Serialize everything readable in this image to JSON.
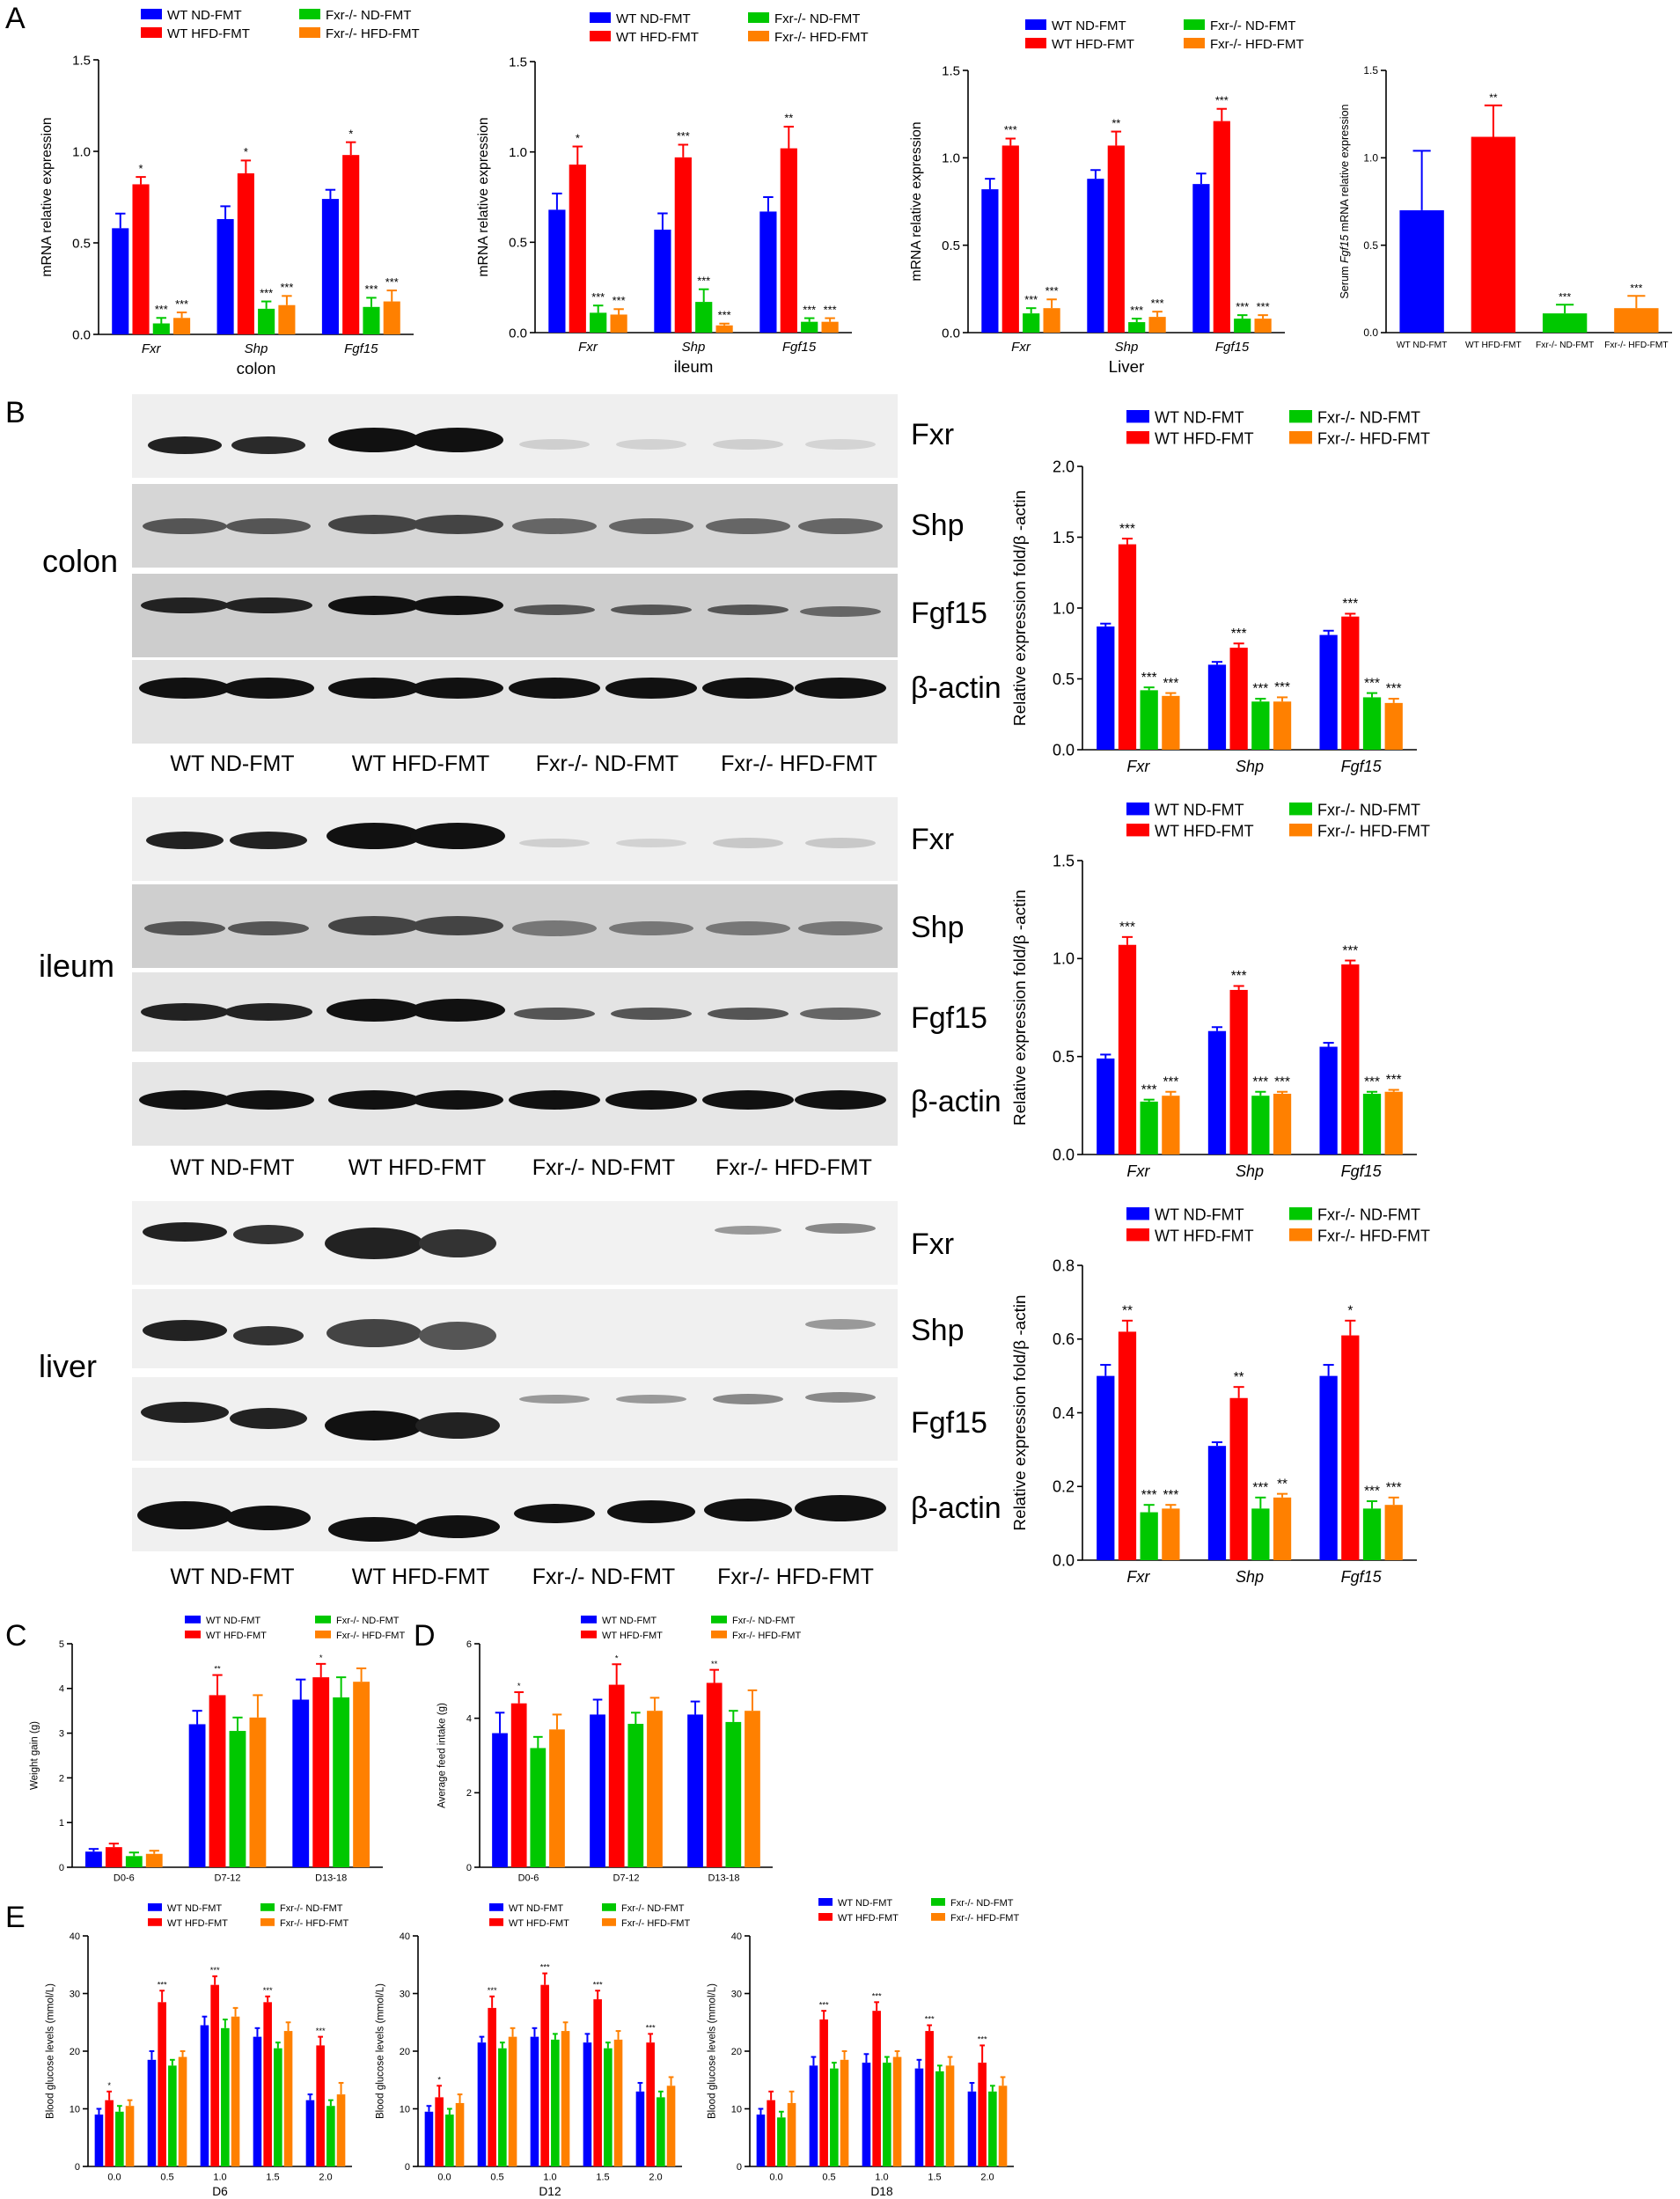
{
  "colors": {
    "WT ND-FMT": "#0000ff",
    "WT HFD-FMT": "#ff0000",
    "Fxr-/- ND-FMT": "#00c800",
    "Fxr-/- HFD-FMT": "#ff8000"
  },
  "legend_labels": [
    "WT ND-FMT",
    "WT HFD-FMT",
    "Fxr-/- ND-FMT",
    "Fxr-/- HFD-FMT"
  ],
  "panel_labels": {
    "A": "A",
    "B": "B",
    "C": "C",
    "D": "D",
    "E": "E"
  },
  "blots": {
    "tissues": [
      "colon",
      "ileum",
      "liver"
    ],
    "bands": [
      "Fxr",
      "Shp",
      "Fgf15",
      "β-actin"
    ],
    "lanes": [
      "WT ND-FMT",
      "WT HFD-FMT",
      "Fxr-/- ND-FMT",
      "Fxr-/- HFD-FMT"
    ]
  },
  "chart_data": [
    {
      "id": "A1",
      "type": "bar",
      "categories": [
        "Fxr",
        "Shp",
        "Fgf15"
      ],
      "xlabel": "colon",
      "ylabel": "mRNA relative expression",
      "ylim": [
        0,
        1.5
      ],
      "yticks": [
        "0.0",
        "0.5",
        "1.0",
        "1.5"
      ],
      "series": [
        {
          "name": "WT ND-FMT",
          "values": [
            0.58,
            0.63,
            0.74
          ],
          "err": [
            0.08,
            0.07,
            0.05
          ],
          "sig": [
            "",
            "",
            ""
          ]
        },
        {
          "name": "WT HFD-FMT",
          "values": [
            0.82,
            0.88,
            0.98
          ],
          "err": [
            0.04,
            0.07,
            0.07
          ],
          "sig": [
            "*",
            "*",
            "*"
          ]
        },
        {
          "name": "Fxr-/- ND-FMT",
          "values": [
            0.06,
            0.14,
            0.15
          ],
          "err": [
            0.03,
            0.04,
            0.05
          ],
          "sig": [
            "***",
            "***",
            "***"
          ]
        },
        {
          "name": "Fxr-/- HFD-FMT",
          "values": [
            0.09,
            0.16,
            0.18
          ],
          "err": [
            0.03,
            0.05,
            0.06
          ],
          "sig": [
            "***",
            "***",
            "***"
          ]
        }
      ]
    },
    {
      "id": "A2",
      "type": "bar",
      "categories": [
        "Fxr",
        "Shp",
        "Fgf15"
      ],
      "xlabel": "ileum",
      "ylabel": "mRNA relative expression",
      "ylim": [
        0,
        1.5
      ],
      "yticks": [
        "0.0",
        "0.5",
        "1.0",
        "1.5"
      ],
      "series": [
        {
          "name": "WT ND-FMT",
          "values": [
            0.68,
            0.57,
            0.67
          ],
          "err": [
            0.09,
            0.09,
            0.08
          ],
          "sig": [
            "",
            "",
            ""
          ]
        },
        {
          "name": "WT HFD-FMT",
          "values": [
            0.93,
            0.97,
            1.02
          ],
          "err": [
            0.1,
            0.07,
            0.12
          ],
          "sig": [
            "*",
            "***",
            "**"
          ]
        },
        {
          "name": "Fxr-/- ND-FMT",
          "values": [
            0.11,
            0.17,
            0.06
          ],
          "err": [
            0.04,
            0.07,
            0.02
          ],
          "sig": [
            "***",
            "***",
            "***"
          ]
        },
        {
          "name": "Fxr-/- HFD-FMT",
          "values": [
            0.1,
            0.04,
            0.06
          ],
          "err": [
            0.03,
            0.01,
            0.02
          ],
          "sig": [
            "***",
            "***",
            "***"
          ]
        }
      ]
    },
    {
      "id": "A3",
      "type": "bar",
      "categories": [
        "Fxr",
        "Shp",
        "Fgf15"
      ],
      "xlabel": "Liver",
      "ylabel": "mRNA relative expression",
      "ylim": [
        0,
        1.5
      ],
      "yticks": [
        "0.0",
        "0.5",
        "1.0",
        "1.5"
      ],
      "series": [
        {
          "name": "WT ND-FMT",
          "values": [
            0.82,
            0.88,
            0.85
          ],
          "err": [
            0.06,
            0.05,
            0.06
          ],
          "sig": [
            "",
            "",
            ""
          ]
        },
        {
          "name": "WT HFD-FMT",
          "values": [
            1.07,
            1.07,
            1.21
          ],
          "err": [
            0.04,
            0.08,
            0.07
          ],
          "sig": [
            "***",
            "**",
            "***"
          ]
        },
        {
          "name": "Fxr-/- ND-FMT",
          "values": [
            0.11,
            0.06,
            0.08
          ],
          "err": [
            0.03,
            0.02,
            0.02
          ],
          "sig": [
            "***",
            "***",
            "***"
          ]
        },
        {
          "name": "Fxr-/- HFD-FMT",
          "values": [
            0.14,
            0.09,
            0.08
          ],
          "err": [
            0.05,
            0.03,
            0.02
          ],
          "sig": [
            "***",
            "***",
            "***"
          ]
        }
      ]
    },
    {
      "id": "A4",
      "type": "bar",
      "categories": [
        "WT ND-FMT",
        "WT HFD-FMT",
        "Fxr-/- ND-FMT",
        "Fxr-/- HFD-FMT"
      ],
      "ylabel_prefix": "Serum ",
      "ylabel_italic": "Fgf15",
      "ylabel_suffix": " mRNA relative expression",
      "ylim": [
        0,
        1.5
      ],
      "yticks": [
        "0.0",
        "0.5",
        "1.0",
        "1.5"
      ],
      "values": [
        0.7,
        1.12,
        0.11,
        0.14
      ],
      "err": [
        0.34,
        0.18,
        0.05,
        0.07
      ],
      "sig": [
        "",
        "**",
        "***",
        "***"
      ]
    },
    {
      "id": "B1",
      "type": "bar",
      "categories": [
        "Fxr",
        "Shp",
        "Fgf15"
      ],
      "ylabel": "Relative expression fold/β -actin",
      "ylim": [
        0,
        2.0
      ],
      "yticks": [
        "0.0",
        "0.5",
        "1.0",
        "1.5",
        "2.0"
      ],
      "series": [
        {
          "name": "WT ND-FMT",
          "values": [
            0.87,
            0.6,
            0.81
          ],
          "err": [
            0.02,
            0.02,
            0.03
          ],
          "sig": [
            "",
            "",
            ""
          ]
        },
        {
          "name": "WT HFD-FMT",
          "values": [
            1.45,
            0.72,
            0.94
          ],
          "err": [
            0.04,
            0.03,
            0.02
          ],
          "sig": [
            "***",
            "***",
            "***"
          ]
        },
        {
          "name": "Fxr-/- ND-FMT",
          "values": [
            0.42,
            0.34,
            0.37
          ],
          "err": [
            0.02,
            0.02,
            0.03
          ],
          "sig": [
            "***",
            "***",
            "***"
          ]
        },
        {
          "name": "Fxr-/- HFD-FMT",
          "values": [
            0.38,
            0.34,
            0.33
          ],
          "err": [
            0.02,
            0.03,
            0.03
          ],
          "sig": [
            "***",
            "***",
            "***"
          ]
        }
      ]
    },
    {
      "id": "B2",
      "type": "bar",
      "categories": [
        "Fxr",
        "Shp",
        "Fgf15"
      ],
      "ylabel": "Relative expression fold/β -actin",
      "ylim": [
        0,
        1.5
      ],
      "yticks": [
        "0.0",
        "0.5",
        "1.0",
        "1.5"
      ],
      "series": [
        {
          "name": "WT ND-FMT",
          "values": [
            0.49,
            0.63,
            0.55
          ],
          "err": [
            0.02,
            0.02,
            0.02
          ],
          "sig": [
            "",
            "",
            ""
          ]
        },
        {
          "name": "WT HFD-FMT",
          "values": [
            1.07,
            0.84,
            0.97
          ],
          "err": [
            0.04,
            0.02,
            0.02
          ],
          "sig": [
            "***",
            "***",
            "***"
          ]
        },
        {
          "name": "Fxr-/- ND-FMT",
          "values": [
            0.27,
            0.3,
            0.31
          ],
          "err": [
            0.01,
            0.02,
            0.01
          ],
          "sig": [
            "***",
            "***",
            "***"
          ]
        },
        {
          "name": "Fxr-/- HFD-FMT",
          "values": [
            0.3,
            0.31,
            0.32
          ],
          "err": [
            0.02,
            0.01,
            0.01
          ],
          "sig": [
            "***",
            "***",
            "***"
          ]
        }
      ]
    },
    {
      "id": "B3",
      "type": "bar",
      "categories": [
        "Fxr",
        "Shp",
        "Fgf15"
      ],
      "ylabel": "Relative expression fold/β -actin",
      "ylim": [
        0,
        0.8
      ],
      "yticks": [
        "0.0",
        "0.2",
        "0.4",
        "0.6",
        "0.8"
      ],
      "series": [
        {
          "name": "WT ND-FMT",
          "values": [
            0.5,
            0.31,
            0.5
          ],
          "err": [
            0.03,
            0.01,
            0.03
          ],
          "sig": [
            "",
            "",
            ""
          ]
        },
        {
          "name": "WT HFD-FMT",
          "values": [
            0.62,
            0.44,
            0.61
          ],
          "err": [
            0.03,
            0.03,
            0.04
          ],
          "sig": [
            "**",
            "**",
            "*"
          ]
        },
        {
          "name": "Fxr-/- ND-FMT",
          "values": [
            0.13,
            0.14,
            0.14
          ],
          "err": [
            0.02,
            0.03,
            0.02
          ],
          "sig": [
            "***",
            "***",
            "***"
          ]
        },
        {
          "name": "Fxr-/- HFD-FMT",
          "values": [
            0.14,
            0.17,
            0.15
          ],
          "err": [
            0.01,
            0.01,
            0.02
          ],
          "sig": [
            "***",
            "**",
            "***"
          ]
        }
      ]
    },
    {
      "id": "C",
      "type": "bar",
      "categories": [
        "D0-6",
        "D7-12",
        "D13-18"
      ],
      "ylabel": "Weight gain (g)",
      "ylim": [
        0,
        5
      ],
      "yticks": [
        "0",
        "1",
        "2",
        "3",
        "4",
        "5"
      ],
      "series": [
        {
          "name": "WT ND-FMT",
          "values": [
            0.35,
            3.2,
            3.75
          ],
          "err": [
            0.06,
            0.3,
            0.45
          ],
          "sig": [
            "",
            "",
            ""
          ]
        },
        {
          "name": "WT HFD-FMT",
          "values": [
            0.45,
            3.85,
            4.25
          ],
          "err": [
            0.08,
            0.45,
            0.3
          ],
          "sig": [
            "",
            "**",
            "*"
          ]
        },
        {
          "name": "Fxr-/- ND-FMT",
          "values": [
            0.25,
            3.05,
            3.8
          ],
          "err": [
            0.08,
            0.3,
            0.45
          ],
          "sig": [
            "",
            "",
            ""
          ]
        },
        {
          "name": "Fxr-/- HFD-FMT",
          "values": [
            0.3,
            3.35,
            4.15
          ],
          "err": [
            0.07,
            0.5,
            0.3
          ],
          "sig": [
            "",
            "",
            ""
          ]
        }
      ]
    },
    {
      "id": "D",
      "type": "bar",
      "categories": [
        "D0-6",
        "D7-12",
        "D13-18"
      ],
      "ylabel": "Average feed intake (g)",
      "ylim": [
        0,
        6
      ],
      "yticks": [
        "0",
        "2",
        "4",
        "6"
      ],
      "series": [
        {
          "name": "WT ND-FMT",
          "values": [
            3.6,
            4.1,
            4.1
          ],
          "err": [
            0.55,
            0.4,
            0.35
          ],
          "sig": [
            "",
            "",
            ""
          ]
        },
        {
          "name": "WT HFD-FMT",
          "values": [
            4.4,
            4.9,
            4.95
          ],
          "err": [
            0.3,
            0.55,
            0.35
          ],
          "sig": [
            "*",
            "*",
            "**"
          ]
        },
        {
          "name": "Fxr-/- ND-FMT",
          "values": [
            3.2,
            3.85,
            3.9
          ],
          "err": [
            0.3,
            0.3,
            0.3
          ],
          "sig": [
            "",
            "",
            ""
          ]
        },
        {
          "name": "Fxr-/- HFD-FMT",
          "values": [
            3.7,
            4.2,
            4.2
          ],
          "err": [
            0.4,
            0.35,
            0.55
          ],
          "sig": [
            "",
            "",
            ""
          ]
        }
      ]
    },
    {
      "id": "E1",
      "type": "bar",
      "categories": [
        "0.0",
        "0.5",
        "1.0",
        "1.5",
        "2.0"
      ],
      "xlabel": "D6",
      "ylabel": "Blood glucose levels (mmol/L)",
      "ylim": [
        0,
        40
      ],
      "yticks": [
        "0",
        "10",
        "20",
        "30",
        "40"
      ],
      "series": [
        {
          "name": "WT ND-FMT",
          "values": [
            9,
            18.5,
            24.5,
            22.5,
            11.5
          ],
          "err": [
            1,
            1.5,
            1.5,
            1.5,
            1
          ],
          "sig": [
            "",
            "",
            "",
            "",
            ""
          ]
        },
        {
          "name": "WT HFD-FMT",
          "values": [
            11.5,
            28.5,
            31.5,
            28.5,
            21
          ],
          "err": [
            1.5,
            2,
            1.5,
            1,
            1.5
          ],
          "sig": [
            "*",
            "***",
            "***",
            "***",
            "***"
          ]
        },
        {
          "name": "Fxr-/- ND-FMT",
          "values": [
            9.5,
            17.5,
            24,
            20.5,
            10.5
          ],
          "err": [
            1,
            1,
            1.5,
            1,
            1
          ],
          "sig": [
            "",
            "",
            "",
            "",
            ""
          ]
        },
        {
          "name": "Fxr-/- HFD-FMT",
          "values": [
            10.5,
            19,
            26,
            23.5,
            12.5
          ],
          "err": [
            1,
            1,
            1.5,
            1.5,
            2
          ],
          "sig": [
            "",
            "",
            "",
            "",
            ""
          ]
        }
      ]
    },
    {
      "id": "E2",
      "type": "bar",
      "categories": [
        "0.0",
        "0.5",
        "1.0",
        "1.5",
        "2.0"
      ],
      "xlabel": "D12",
      "ylabel": "Blood glucose levels (mmol/L)",
      "ylim": [
        0,
        40
      ],
      "yticks": [
        "0",
        "10",
        "20",
        "30",
        "40"
      ],
      "series": [
        {
          "name": "WT ND-FMT",
          "values": [
            9.5,
            21.5,
            22.5,
            21.5,
            13
          ],
          "err": [
            1,
            1,
            1.5,
            1.5,
            1.5
          ],
          "sig": [
            "",
            "",
            "",
            "",
            ""
          ]
        },
        {
          "name": "WT HFD-FMT",
          "values": [
            12,
            27.5,
            31.5,
            29,
            21.5
          ],
          "err": [
            2,
            2,
            2,
            1.5,
            1.5
          ],
          "sig": [
            "*",
            "***",
            "***",
            "***",
            "***"
          ]
        },
        {
          "name": "Fxr-/- ND-FMT",
          "values": [
            9,
            20.5,
            22,
            20.5,
            12
          ],
          "err": [
            1,
            1,
            1,
            1,
            1
          ],
          "sig": [
            "",
            "",
            "",
            "",
            ""
          ]
        },
        {
          "name": "Fxr-/- HFD-FMT",
          "values": [
            11,
            22.5,
            23.5,
            22,
            14
          ],
          "err": [
            1.5,
            1.5,
            1.5,
            1.5,
            1.5
          ],
          "sig": [
            "",
            "",
            "",
            "",
            ""
          ]
        }
      ]
    },
    {
      "id": "E3",
      "type": "bar",
      "categories": [
        "0.0",
        "0.5",
        "1.0",
        "1.5",
        "2.0"
      ],
      "xlabel": "D18",
      "ylabel": "Blood glucose levels (mmol/L)",
      "ylim": [
        0,
        40
      ],
      "yticks": [
        "0",
        "10",
        "20",
        "30",
        "40"
      ],
      "series": [
        {
          "name": "WT ND-FMT",
          "values": [
            9,
            17.5,
            18,
            17,
            13
          ],
          "err": [
            1,
            1.5,
            1.5,
            1.5,
            1.5
          ],
          "sig": [
            "",
            "",
            "",
            "",
            ""
          ]
        },
        {
          "name": "WT HFD-FMT",
          "values": [
            11.5,
            25.5,
            27,
            23.5,
            18
          ],
          "err": [
            1.5,
            1.5,
            1.5,
            1,
            3
          ],
          "sig": [
            "",
            "***",
            "***",
            "***",
            "***"
          ]
        },
        {
          "name": "Fxr-/- ND-FMT",
          "values": [
            8.5,
            17,
            18,
            16.5,
            13
          ],
          "err": [
            1,
            1,
            1,
            1,
            1
          ],
          "sig": [
            "",
            "",
            "",
            "",
            ""
          ]
        },
        {
          "name": "Fxr-/- HFD-FMT",
          "values": [
            11,
            18.5,
            19,
            17.5,
            14
          ],
          "err": [
            2,
            1.5,
            1,
            1.5,
            1.5
          ],
          "sig": [
            "",
            "",
            "",
            "",
            ""
          ]
        }
      ]
    }
  ]
}
